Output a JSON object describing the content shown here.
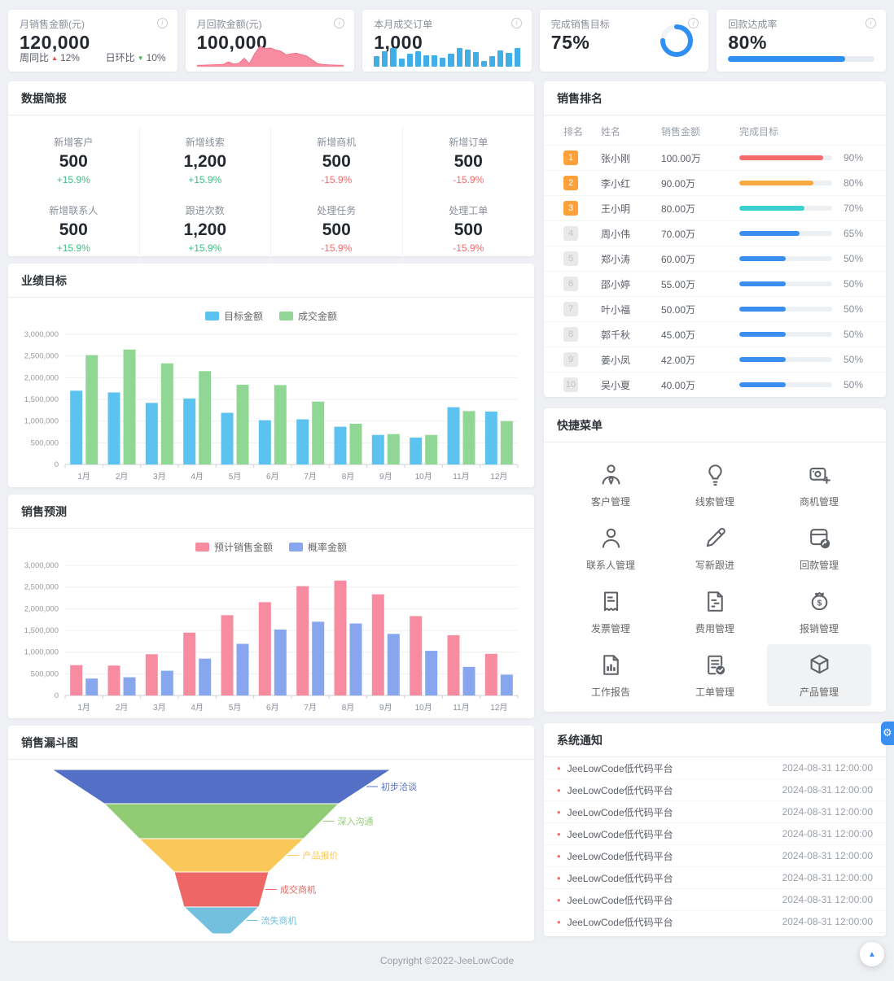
{
  "stat_cards": [
    {
      "title": "月销售金额(元)",
      "value": "120,000",
      "week_label": "周同比",
      "week_value": "12%",
      "day_label": "日环比",
      "day_value": "10%"
    },
    {
      "title": "月回款金额(元)",
      "value": "100,000"
    },
    {
      "title": "本月成交订单",
      "value": "1,000"
    },
    {
      "title": "完成销售目标",
      "value": "75%",
      "percent": 75
    },
    {
      "title": "回款达成率",
      "value": "80%",
      "percent": 80
    }
  ],
  "sections": {
    "data_brief": "数据简报",
    "performance": "业绩目标",
    "forecast": "销售预测",
    "funnel": "销售漏斗图",
    "ranking": "销售排名",
    "quick_menu": "快捷菜单",
    "notifications": "系统通知"
  },
  "data_brief": {
    "items": [
      {
        "label": "新增客户",
        "value": "500",
        "delta": "+15.9%",
        "trend": "up"
      },
      {
        "label": "新增线索",
        "value": "1,200",
        "delta": "+15.9%",
        "trend": "up"
      },
      {
        "label": "新增商机",
        "value": "500",
        "delta": "-15.9%",
        "trend": "down"
      },
      {
        "label": "新增订单",
        "value": "500",
        "delta": "-15.9%",
        "trend": "down"
      },
      {
        "label": "新增联系人",
        "value": "500",
        "delta": "+15.9%",
        "trend": "up"
      },
      {
        "label": "跟进次数",
        "value": "1,200",
        "delta": "+15.9%",
        "trend": "up"
      },
      {
        "label": "处理任务",
        "value": "500",
        "delta": "-15.9%",
        "trend": "down"
      },
      {
        "label": "处理工单",
        "value": "500",
        "delta": "-15.9%",
        "trend": "down"
      }
    ]
  },
  "chart_data": [
    {
      "id": "performance",
      "type": "bar",
      "title": "业绩目标",
      "categories": [
        "1月",
        "2月",
        "3月",
        "4月",
        "5月",
        "6月",
        "7月",
        "8月",
        "9月",
        "10月",
        "11月",
        "12月"
      ],
      "series": [
        {
          "name": "目标金额",
          "color": "#5cc2ef",
          "values": [
            1700000,
            1660000,
            1420000,
            1520000,
            1190000,
            1020000,
            1040000,
            870000,
            680000,
            620000,
            1320000,
            1220000
          ]
        },
        {
          "name": "成交金额",
          "color": "#90d795",
          "values": [
            2520000,
            2650000,
            2330000,
            2150000,
            1840000,
            1830000,
            1450000,
            940000,
            700000,
            680000,
            1230000,
            1000000
          ]
        }
      ],
      "ylim": [
        0,
        3000000
      ],
      "ytick": 500000,
      "grid": true,
      "legend_position": "top-center"
    },
    {
      "id": "forecast",
      "type": "bar",
      "title": "销售预测",
      "categories": [
        "1月",
        "2月",
        "3月",
        "4月",
        "5月",
        "6月",
        "7月",
        "8月",
        "9月",
        "10月",
        "11月",
        "12月"
      ],
      "series": [
        {
          "name": "预计销售金额",
          "color": "#f78ca1",
          "values": [
            700000,
            690000,
            950000,
            1450000,
            1850000,
            2150000,
            2520000,
            2650000,
            2330000,
            1830000,
            1390000,
            960000
          ]
        },
        {
          "name": "概率金额",
          "color": "#87a6ee",
          "values": [
            390000,
            420000,
            570000,
            850000,
            1190000,
            1520000,
            1700000,
            1660000,
            1420000,
            1030000,
            660000,
            480000
          ]
        }
      ],
      "ylim": [
        0,
        3000000
      ],
      "ytick": 500000,
      "grid": true,
      "legend_position": "top-center"
    },
    {
      "id": "funnel",
      "type": "funnel",
      "title": "销售漏斗图",
      "stages": [
        {
          "label": "初步洽谈",
          "color": "#5470c6"
        },
        {
          "label": "深入沟通",
          "color": "#91cc75"
        },
        {
          "label": "产品报价",
          "color": "#fac858"
        },
        {
          "label": "成交商机",
          "color": "#ee6666"
        },
        {
          "label": "流失商机",
          "color": "#73c0de"
        }
      ],
      "boundary_half_widths": [
        208,
        144,
        101,
        58,
        46,
        11
      ],
      "boundary_ys": [
        10,
        52,
        95,
        136,
        179,
        212
      ]
    },
    {
      "id": "payment_trend",
      "type": "area",
      "color": "#f78ca0",
      "line_color": "#ee5f7d",
      "values": [
        4,
        4,
        5,
        6,
        7,
        8,
        20,
        10,
        14,
        38,
        12,
        60,
        95,
        85,
        88,
        78,
        72,
        55,
        60,
        62,
        55,
        48,
        30,
        12,
        8,
        6,
        5,
        4,
        4
      ]
    },
    {
      "id": "order_bars",
      "type": "bar",
      "color": "#41aee8",
      "values": [
        45,
        62,
        78,
        35,
        52,
        62,
        48,
        48,
        36,
        52,
        78,
        70,
        60,
        22,
        42,
        66,
        56,
        78
      ]
    }
  ],
  "ranking": {
    "headers": [
      "排名",
      "姓名",
      "销售金额",
      "完成目标"
    ],
    "rows": [
      {
        "rank": 1,
        "name": "张小刚",
        "amount": "100.00万",
        "percent": 90,
        "color": "#f56c6c"
      },
      {
        "rank": 2,
        "name": "李小红",
        "amount": "90.00万",
        "percent": 80,
        "color": "#f7a843"
      },
      {
        "rank": 3,
        "name": "王小明",
        "amount": "80.00万",
        "percent": 70,
        "color": "#3ccfcf"
      },
      {
        "rank": 4,
        "name": "周小伟",
        "amount": "70.00万",
        "percent": 65,
        "color": "#3a8ef0"
      },
      {
        "rank": 5,
        "name": "郑小涛",
        "amount": "60.00万",
        "percent": 50,
        "color": "#3a8ef0"
      },
      {
        "rank": 6,
        "name": "邵小婷",
        "amount": "55.00万",
        "percent": 50,
        "color": "#3a8ef0"
      },
      {
        "rank": 7,
        "name": "叶小福",
        "amount": "50.00万",
        "percent": 50,
        "color": "#3a8ef0"
      },
      {
        "rank": 8,
        "name": "郭千秋",
        "amount": "45.00万",
        "percent": 50,
        "color": "#3a8ef0"
      },
      {
        "rank": 9,
        "name": "姜小凤",
        "amount": "42.00万",
        "percent": 50,
        "color": "#3a8ef0"
      },
      {
        "rank": 10,
        "name": "吴小夏",
        "amount": "40.00万",
        "percent": 50,
        "color": "#3a8ef0"
      }
    ]
  },
  "quick_menu": {
    "items": [
      {
        "icon": "customer-icon",
        "label": "客户管理",
        "active": false
      },
      {
        "icon": "lead-icon",
        "label": "线索管理",
        "active": false
      },
      {
        "icon": "opportunity-icon",
        "label": "商机管理",
        "active": false
      },
      {
        "icon": "contact-icon",
        "label": "联系人管理",
        "active": false
      },
      {
        "icon": "followup-icon",
        "label": "写新跟进",
        "active": false
      },
      {
        "icon": "payment-icon",
        "label": "回款管理",
        "active": false
      },
      {
        "icon": "invoice-icon",
        "label": "发票管理",
        "active": false
      },
      {
        "icon": "expense-icon",
        "label": "费用管理",
        "active": false
      },
      {
        "icon": "reimburse-icon",
        "label": "报销管理",
        "active": false
      },
      {
        "icon": "report-icon",
        "label": "工作报告",
        "active": false
      },
      {
        "icon": "workorder-icon",
        "label": "工单管理",
        "active": false
      },
      {
        "icon": "product-icon",
        "label": "产品管理",
        "active": true
      }
    ]
  },
  "notifications": {
    "items": [
      {
        "text": "JeeLowCode低代码平台",
        "time": "2024-08-31 12:00:00"
      },
      {
        "text": "JeeLowCode低代码平台",
        "time": "2024-08-31 12:00:00"
      },
      {
        "text": "JeeLowCode低代码平台",
        "time": "2024-08-31 12:00:00"
      },
      {
        "text": "JeeLowCode低代码平台",
        "time": "2024-08-31 12:00:00"
      },
      {
        "text": "JeeLowCode低代码平台",
        "time": "2024-08-31 12:00:00"
      },
      {
        "text": "JeeLowCode低代码平台",
        "time": "2024-08-31 12:00:00"
      },
      {
        "text": "JeeLowCode低代码平台",
        "time": "2024-08-31 12:00:00"
      },
      {
        "text": "JeeLowCode低代码平台",
        "time": "2024-08-31 12:00:00"
      }
    ]
  },
  "icons": {
    "info": "i",
    "gear": "⚙",
    "back_to_top": "▲",
    "up_arrow": "▲",
    "down_arrow": "▼",
    "dot": "•"
  },
  "colors": {
    "accent_blue": "#2f8ff2",
    "mini_bar_blue": "#41aee8",
    "up_green": "#3fbe85",
    "down_red": "#f56c6c"
  },
  "footer": {
    "copyright": "Copyright ©2022-JeeLowCode"
  }
}
